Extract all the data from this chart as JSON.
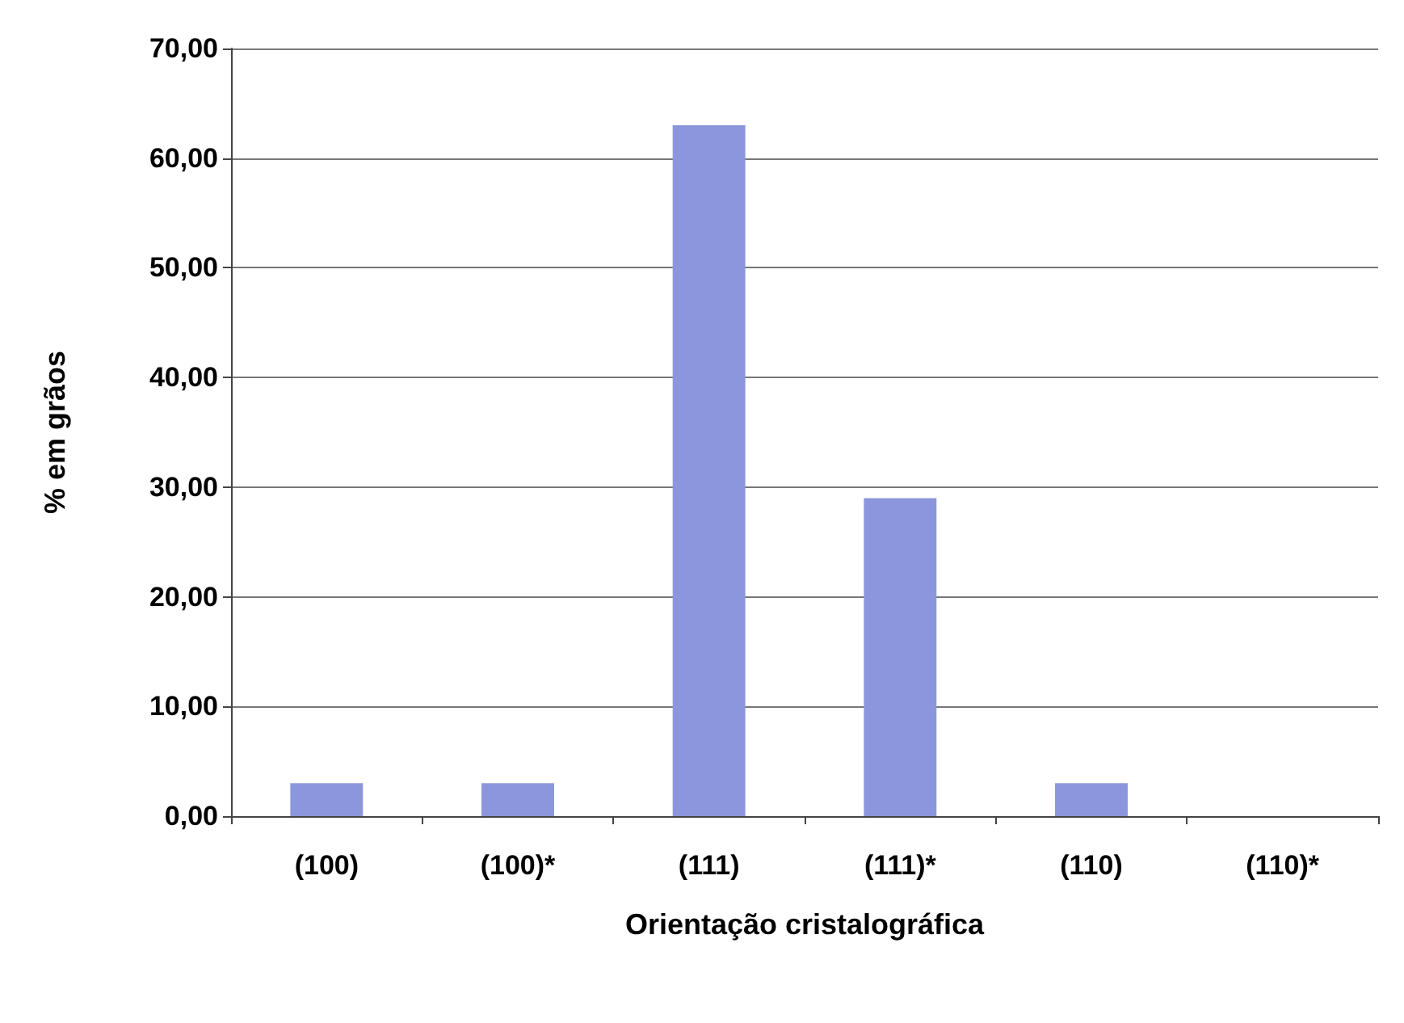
{
  "chart_data": {
    "type": "bar",
    "xlabel": "Orientação cristalográfica",
    "ylabel": "% em grãos",
    "categories": [
      "(100)",
      "(100)*",
      "(111)",
      "(111)*",
      "(110)",
      "(110)*"
    ],
    "values": [
      3,
      3,
      63,
      29,
      3,
      0
    ],
    "color": "#8c96dc",
    "ylim": [
      0,
      70
    ],
    "yticks": [
      {
        "value": 0,
        "label": "0,00"
      },
      {
        "value": 10,
        "label": "10,00"
      },
      {
        "value": 20,
        "label": "20,00"
      },
      {
        "value": 30,
        "label": "30,00"
      },
      {
        "value": 40,
        "label": "40,00"
      },
      {
        "value": 50,
        "label": "50,00"
      },
      {
        "value": 60,
        "label": "60,00"
      },
      {
        "value": 70,
        "label": "70,00"
      }
    ],
    "grid": "y"
  }
}
